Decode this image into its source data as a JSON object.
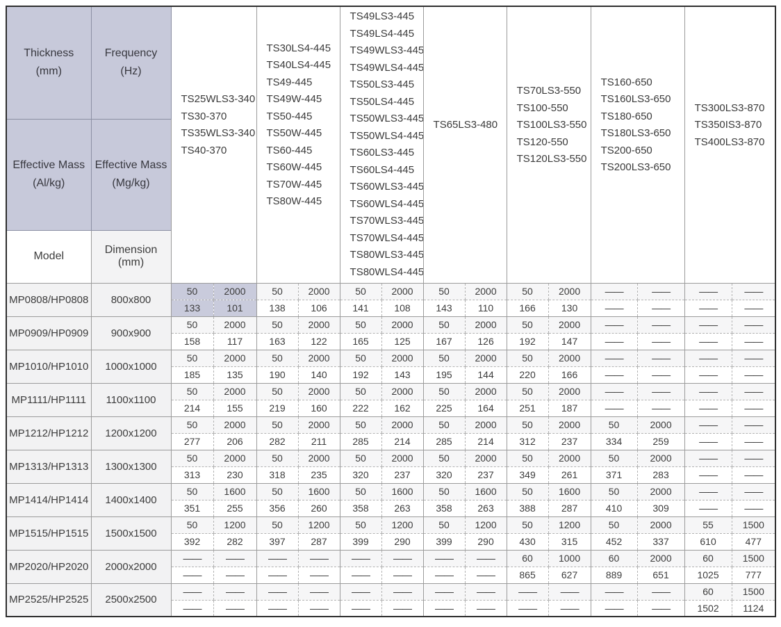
{
  "table": {
    "dash": "——",
    "corner": {
      "thickness": {
        "label": "Thickness",
        "unit": "(mm)"
      },
      "frequency": {
        "label": "Frequency",
        "unit": "(Hz)"
      },
      "mass_al": {
        "label": "Effective Mass",
        "unit": "(Al/kg)"
      },
      "mass_mg": {
        "label": "Effective Mass",
        "unit": "(Mg/kg)"
      },
      "model": {
        "label": "Model"
      },
      "dimension": {
        "label": "Dimension",
        "unit": "(mm)"
      }
    },
    "groups": [
      {
        "models": [
          "TS25WLS3-340",
          "TS30-370",
          "TS35WLS3-340",
          "TS40-370"
        ]
      },
      {
        "models": [
          "TS30LS4-445",
          "TS40LS4-445",
          "TS49-445",
          "TS49W-445",
          "TS50-445",
          "TS50W-445",
          "TS60-445",
          "TS60W-445",
          "TS70W-445",
          "TS80W-445"
        ]
      },
      {
        "models": [
          "TS49LS3-445",
          "TS49LS4-445",
          "TS49WLS3-445",
          "TS49WLS4-445",
          "TS50LS3-445",
          "TS50LS4-445",
          "TS50WLS3-445",
          "TS50WLS4-445",
          "TS60LS3-445",
          "TS60LS4-445",
          "TS60WLS3-445",
          "TS60WLS4-445",
          "TS70WLS3-445",
          "TS70WLS4-445",
          "TS80WLS3-445",
          "TS80WLS4-445"
        ]
      },
      {
        "models": [
          "TS65LS3-480"
        ]
      },
      {
        "models": [
          "TS70LS3-550",
          "TS100-550",
          "TS100LS3-550",
          "TS120-550",
          "TS120LS3-550"
        ]
      },
      {
        "models": [
          "TS160-650",
          "TS160LS3-650",
          "TS180-650",
          "TS180LS3-650",
          "TS200-650",
          "TS200LS3-650"
        ]
      },
      {
        "models": [
          "TS300LS3-870",
          "TS350IS3-870",
          "TS400LS3-870"
        ]
      }
    ],
    "highlight": {
      "row": 0,
      "group": 0
    },
    "rows": [
      {
        "model": "MP0808/HP0808",
        "dimension": "800x800",
        "cells": [
          [
            "50",
            "2000",
            "133",
            "101"
          ],
          [
            "50",
            "2000",
            "138",
            "106"
          ],
          [
            "50",
            "2000",
            "141",
            "108"
          ],
          [
            "50",
            "2000",
            "143",
            "110"
          ],
          [
            "50",
            "2000",
            "166",
            "130"
          ],
          null,
          null
        ]
      },
      {
        "model": "MP0909/HP0909",
        "dimension": "900x900",
        "cells": [
          [
            "50",
            "2000",
            "158",
            "117"
          ],
          [
            "50",
            "2000",
            "163",
            "122"
          ],
          [
            "50",
            "2000",
            "165",
            "125"
          ],
          [
            "50",
            "2000",
            "167",
            "126"
          ],
          [
            "50",
            "2000",
            "192",
            "147"
          ],
          null,
          null
        ]
      },
      {
        "model": "MP1010/HP1010",
        "dimension": "1000x1000",
        "cells": [
          [
            "50",
            "2000",
            "185",
            "135"
          ],
          [
            "50",
            "2000",
            "190",
            "140"
          ],
          [
            "50",
            "2000",
            "192",
            "143"
          ],
          [
            "50",
            "2000",
            "195",
            "144"
          ],
          [
            "50",
            "2000",
            "220",
            "166"
          ],
          null,
          null
        ]
      },
      {
        "model": "MP1111/HP1111",
        "dimension": "1100x1100",
        "cells": [
          [
            "50",
            "2000",
            "214",
            "155"
          ],
          [
            "50",
            "2000",
            "219",
            "160"
          ],
          [
            "50",
            "2000",
            "222",
            "162"
          ],
          [
            "50",
            "2000",
            "225",
            "164"
          ],
          [
            "50",
            "2000",
            "251",
            "187"
          ],
          null,
          null
        ]
      },
      {
        "model": "MP1212/HP1212",
        "dimension": "1200x1200",
        "cells": [
          [
            "50",
            "2000",
            "277",
            "206"
          ],
          [
            "50",
            "2000",
            "282",
            "211"
          ],
          [
            "50",
            "2000",
            "285",
            "214"
          ],
          [
            "50",
            "2000",
            "285",
            "214"
          ],
          [
            "50",
            "2000",
            "312",
            "237"
          ],
          [
            "50",
            "2000",
            "334",
            "259"
          ],
          null
        ]
      },
      {
        "model": "MP1313/HP1313",
        "dimension": "1300x1300",
        "cells": [
          [
            "50",
            "2000",
            "313",
            "230"
          ],
          [
            "50",
            "2000",
            "318",
            "235"
          ],
          [
            "50",
            "2000",
            "320",
            "237"
          ],
          [
            "50",
            "2000",
            "320",
            "237"
          ],
          [
            "50",
            "2000",
            "349",
            "261"
          ],
          [
            "50",
            "2000",
            "371",
            "283"
          ],
          null
        ]
      },
      {
        "model": "MP1414/HP1414",
        "dimension": "1400x1400",
        "cells": [
          [
            "50",
            "1600",
            "351",
            "255"
          ],
          [
            "50",
            "1600",
            "356",
            "260"
          ],
          [
            "50",
            "1600",
            "358",
            "263"
          ],
          [
            "50",
            "1600",
            "358",
            "263"
          ],
          [
            "50",
            "1600",
            "388",
            "287"
          ],
          [
            "50",
            "2000",
            "410",
            "309"
          ],
          null
        ]
      },
      {
        "model": "MP1515/HP1515",
        "dimension": "1500x1500",
        "cells": [
          [
            "50",
            "1200",
            "392",
            "282"
          ],
          [
            "50",
            "1200",
            "397",
            "287"
          ],
          [
            "50",
            "1200",
            "399",
            "290"
          ],
          [
            "50",
            "1200",
            "399",
            "290"
          ],
          [
            "50",
            "1200",
            "430",
            "315"
          ],
          [
            "50",
            "2000",
            "452",
            "337"
          ],
          [
            "55",
            "1500",
            "610",
            "477"
          ]
        ]
      },
      {
        "model": "MP2020/HP2020",
        "dimension": "2000x2000",
        "cells": [
          null,
          null,
          null,
          null,
          [
            "60",
            "1000",
            "865",
            "627"
          ],
          [
            "60",
            "2000",
            "889",
            "651"
          ],
          [
            "60",
            "1500",
            "1025",
            "777"
          ]
        ]
      },
      {
        "model": "MP2525/HP2525",
        "dimension": "2500x2500",
        "cells": [
          null,
          null,
          null,
          null,
          null,
          null,
          [
            "60",
            "1500",
            "1502",
            "1124"
          ]
        ]
      }
    ]
  }
}
